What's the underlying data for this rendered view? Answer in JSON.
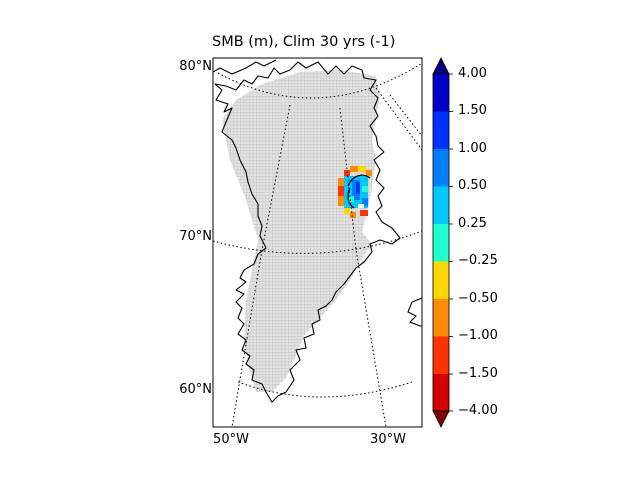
{
  "title": "SMB (m), Clim 30 yrs (-1)",
  "lat_labels": [
    "80°N",
    "70°N",
    "60°N"
  ],
  "lon_labels": [
    "50°W",
    "30°W"
  ],
  "colorbar": {
    "ticks": [
      "4.00",
      "1.50",
      "1.00",
      "0.50",
      "0.25",
      "−0.25",
      "−0.50",
      "−1.00",
      "−1.50",
      "−4.00"
    ],
    "colors_top_to_bottom": [
      "#0000c8",
      "#0032ff",
      "#0080ff",
      "#00c8ff",
      "#20ffd0",
      "#ffd700",
      "#ff8c00",
      "#ff3200",
      "#d40000"
    ],
    "extend_top": "#00007f",
    "extend_bottom": "#7f0000"
  },
  "colors": {
    "land": "#d9d9d9",
    "grid_cell": "#9a9a9a",
    "coast": "#000000"
  }
}
